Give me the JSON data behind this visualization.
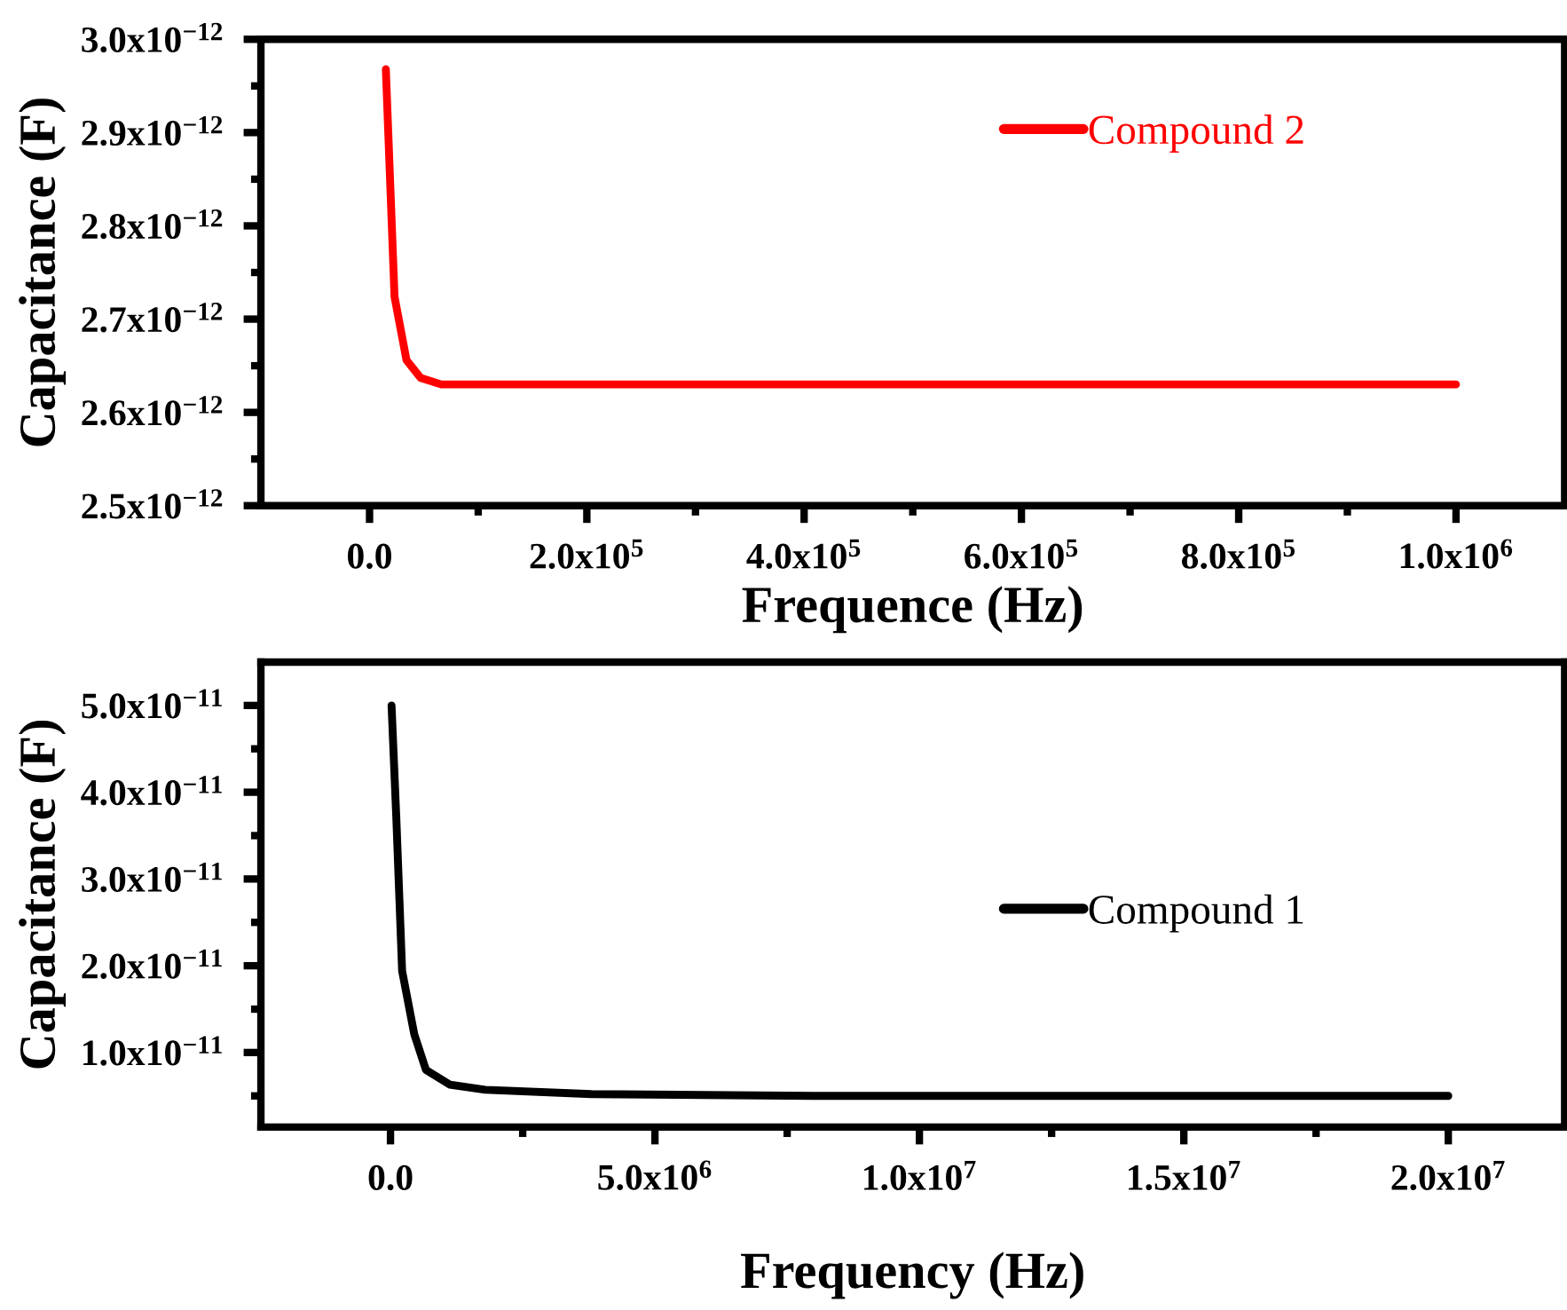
{
  "chart_data": [
    {
      "type": "line",
      "xlabel": "Frequence (Hz)",
      "ylabel": "Capacitance (F)",
      "legend": "top right",
      "xlim": [
        -100000,
        1100000
      ],
      "ylim": [
        2.5e-12,
        3e-12
      ],
      "xticks": [
        {
          "value": 0,
          "label": "0.0"
        },
        {
          "value": 100000,
          "label": null
        },
        {
          "value": 200000,
          "label": "2.0x10$^{5}$"
        },
        {
          "value": 300000,
          "label": null
        },
        {
          "value": 400000,
          "label": "4.0x10$^{5}$"
        },
        {
          "value": 500000,
          "label": null
        },
        {
          "value": 600000,
          "label": "6.0x10$^{5}$"
        },
        {
          "value": 700000,
          "label": null
        },
        {
          "value": 800000,
          "label": "8.0x10$^{5}$"
        },
        {
          "value": 900000,
          "label": null
        },
        {
          "value": 1000000,
          "label": "1.0x10$^{6}$"
        }
      ],
      "yticks": [
        {
          "value": 2.5e-12,
          "label": "2.5x10$^{−12}$"
        },
        {
          "value": 2.55e-12,
          "label": null
        },
        {
          "value": 2.6e-12,
          "label": "2.6x10$^{−12}$"
        },
        {
          "value": 2.65e-12,
          "label": null
        },
        {
          "value": 2.7e-12,
          "label": "2.7x10$^{−12}$"
        },
        {
          "value": 2.75e-12,
          "label": null
        },
        {
          "value": 2.8e-12,
          "label": "2.8x10$^{−12}$"
        },
        {
          "value": 2.85e-12,
          "label": null
        },
        {
          "value": 2.9e-12,
          "label": "2.9x10$^{−12}$"
        },
        {
          "value": 2.95e-12,
          "label": null
        },
        {
          "value": 3e-12,
          "label": "3.0x10$^{−12}$"
        }
      ],
      "series": [
        {
          "name": "Compound 2",
          "color": "#ff0000",
          "x": [
            15000,
            23000,
            34000,
            47000,
            66000,
            100000,
            300000,
            600000,
            1000000
          ],
          "values": [
            2.968e-12,
            2.724e-12,
            2.656e-12,
            2.637e-12,
            2.63e-12,
            2.63e-12,
            2.63e-12,
            2.63e-12,
            2.63e-12
          ]
        }
      ]
    },
    {
      "type": "line",
      "xlabel": "Frequency (Hz)",
      "ylabel": "Capacitance (F)",
      "legend": "right",
      "xlim": [
        -2450000,
        22200000
      ],
      "ylim": [
        1.4e-12,
        5.5e-11
      ],
      "xticks": [
        {
          "value": 0,
          "label": "0.0"
        },
        {
          "value": 2500000,
          "label": null
        },
        {
          "value": 5000000,
          "label": "5.0x10$^{6}$"
        },
        {
          "value": 7500000,
          "label": null
        },
        {
          "value": 10000000,
          "label": "1.0x10$^{7}$"
        },
        {
          "value": 12500000,
          "label": null
        },
        {
          "value": 15000000,
          "label": "1.5x10$^{7}$"
        },
        {
          "value": 17500000,
          "label": null
        },
        {
          "value": 20000000,
          "label": "2.0x10$^{7}$"
        }
      ],
      "yticks": [
        {
          "value": 5e-12,
          "label": null
        },
        {
          "value": 1e-11,
          "label": "1.0x10$^{−11}$"
        },
        {
          "value": 1.5e-11,
          "label": null
        },
        {
          "value": 2e-11,
          "label": "2.0x10$^{−11}$"
        },
        {
          "value": 2.5e-11,
          "label": null
        },
        {
          "value": 3e-11,
          "label": "3.0x10$^{−11}$"
        },
        {
          "value": 3.5e-11,
          "label": null
        },
        {
          "value": 4e-11,
          "label": "4.0x10$^{−11}$"
        },
        {
          "value": 4.5e-11,
          "label": null
        },
        {
          "value": 5e-11,
          "label": "5.0x10$^{−11}$"
        }
      ],
      "series": [
        {
          "name": "Compound 1",
          "color": "#000000",
          "x": [
            20000,
            110000,
            220000,
            450000,
            670000,
            1120000,
            1790000,
            3800000,
            8000000,
            14000000,
            20000000
          ],
          "values": [
            5e-11,
            3.71e-11,
            1.94e-11,
            1.21e-11,
            8e-12,
            6.3e-12,
            5.7e-12,
            5.2e-12,
            5e-12,
            5e-12,
            5e-12
          ]
        }
      ]
    }
  ]
}
